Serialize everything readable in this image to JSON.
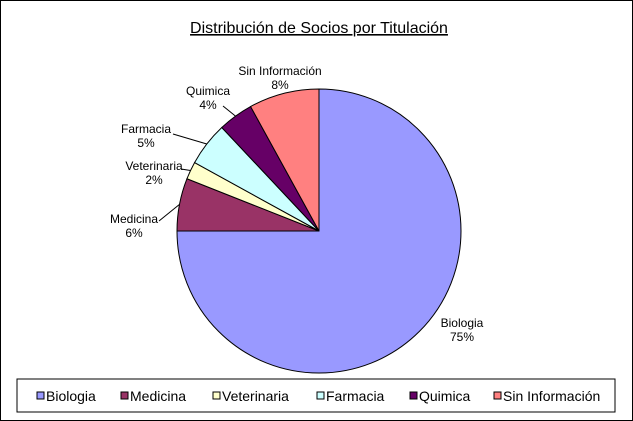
{
  "chart_data": {
    "type": "pie",
    "title": "Distribución de Socios por Titulación",
    "legend_position": "bottom",
    "slices": [
      {
        "label": "Biologia",
        "value": 75,
        "value_label": "75%",
        "color": "#9999ff"
      },
      {
        "label": "Medicina",
        "value": 6,
        "value_label": "6%",
        "color": "#993366"
      },
      {
        "label": "Veterinaria",
        "value": 2,
        "value_label": "2%",
        "color": "#ffffcc"
      },
      {
        "label": "Farmacia",
        "value": 5,
        "value_label": "5%",
        "color": "#ccffff"
      },
      {
        "label": "Quimica",
        "value": 4,
        "value_label": "4%",
        "color": "#660066"
      },
      {
        "label": "Sin Información",
        "value": 8,
        "value_label": "8%",
        "color": "#ff8080"
      }
    ]
  }
}
